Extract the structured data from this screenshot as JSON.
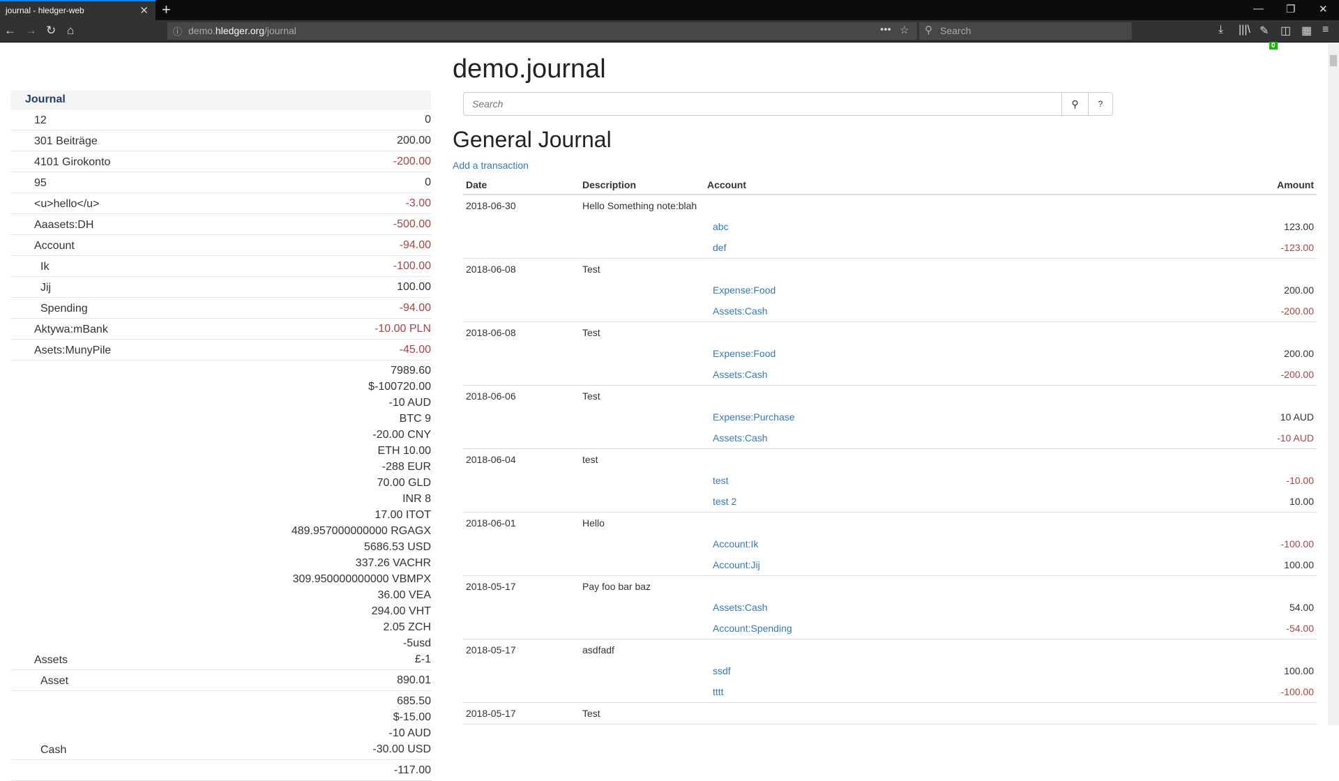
{
  "browser": {
    "tab_title": "journal - hledger-web",
    "url_prefix": "demo.",
    "url_domain": "hledger.org",
    "url_path": "/journal",
    "search_placeholder": "Search",
    "badge_count": "0"
  },
  "page": {
    "title": "demo.journal",
    "search_placeholder": "Search",
    "search_help": "?",
    "heading": "General Journal",
    "add_transaction": "Add a transaction"
  },
  "sidebar": {
    "header": "Journal",
    "rows": [
      {
        "name": "12",
        "depth": 1,
        "amounts": [
          {
            "v": "0",
            "neg": false
          }
        ]
      },
      {
        "name": "301 Beiträge",
        "depth": 1,
        "amounts": [
          {
            "v": "200.00",
            "neg": false
          }
        ]
      },
      {
        "name": "4101 Girokonto",
        "depth": 1,
        "amounts": [
          {
            "v": "-200.00",
            "neg": true
          }
        ]
      },
      {
        "name": "95",
        "depth": 1,
        "amounts": [
          {
            "v": "0",
            "neg": false
          }
        ]
      },
      {
        "name": "<u>hello</u>",
        "depth": 1,
        "amounts": [
          {
            "v": "-3.00",
            "neg": true
          }
        ]
      },
      {
        "name": "Aaasets:DH",
        "depth": 1,
        "amounts": [
          {
            "v": "-500.00",
            "neg": true
          }
        ]
      },
      {
        "name": "Account",
        "depth": 1,
        "amounts": [
          {
            "v": "-94.00",
            "neg": true
          }
        ]
      },
      {
        "name": "Ik",
        "depth": 2,
        "amounts": [
          {
            "v": "-100.00",
            "neg": true
          }
        ]
      },
      {
        "name": "Jij",
        "depth": 2,
        "amounts": [
          {
            "v": "100.00",
            "neg": false
          }
        ]
      },
      {
        "name": "Spending",
        "depth": 2,
        "amounts": [
          {
            "v": "-94.00",
            "neg": true
          }
        ]
      },
      {
        "name": "Aktywa:mBank",
        "depth": 1,
        "amounts": [
          {
            "v": "-10.00 PLN",
            "neg": true
          }
        ]
      },
      {
        "name": "Asets:MunyPile",
        "depth": 1,
        "amounts": [
          {
            "v": "-45.00",
            "neg": true
          }
        ]
      },
      {
        "name": "Assets",
        "depth": 1,
        "amounts": [
          {
            "v": "7989.60",
            "neg": false
          },
          {
            "v": "$-100720.00",
            "neg": false
          },
          {
            "v": "-10 AUD",
            "neg": false
          },
          {
            "v": "BTC 9",
            "neg": false
          },
          {
            "v": "-20.00 CNY",
            "neg": false
          },
          {
            "v": "ETH 10.00",
            "neg": false
          },
          {
            "v": "-288 EUR",
            "neg": false
          },
          {
            "v": "70.00 GLD",
            "neg": false
          },
          {
            "v": "INR 8",
            "neg": false
          },
          {
            "v": "17.00 ITOT",
            "neg": false
          },
          {
            "v": "489.957000000000 RGAGX",
            "neg": false
          },
          {
            "v": "5686.53 USD",
            "neg": false
          },
          {
            "v": "337.26 VACHR",
            "neg": false
          },
          {
            "v": "309.950000000000 VBMPX",
            "neg": false
          },
          {
            "v": "36.00 VEA",
            "neg": false
          },
          {
            "v": "294.00 VHT",
            "neg": false
          },
          {
            "v": "2.05 ZCH",
            "neg": false
          },
          {
            "v": "-5usd",
            "neg": false
          },
          {
            "v": "£-1",
            "neg": false
          }
        ]
      },
      {
        "name": "Asset",
        "depth": 2,
        "amounts": [
          {
            "v": "890.01",
            "neg": false
          }
        ]
      },
      {
        "name": "Cash",
        "depth": 2,
        "amounts": [
          {
            "v": "685.50",
            "neg": false
          },
          {
            "v": "$-15.00",
            "neg": false
          },
          {
            "v": "-10 AUD",
            "neg": false
          },
          {
            "v": "-30.00 USD",
            "neg": false
          }
        ]
      },
      {
        "name": "",
        "depth": 2,
        "amounts": [
          {
            "v": "-117.00",
            "neg": false
          }
        ]
      }
    ]
  },
  "journal": {
    "columns": [
      "Date",
      "Description",
      "Account",
      "Amount"
    ],
    "transactions": [
      {
        "date": "2018-06-30",
        "description": "Hello Something note:blah",
        "postings": [
          {
            "account": "abc",
            "amount": "123.00",
            "neg": false
          },
          {
            "account": "def",
            "amount": "-123.00",
            "neg": true
          }
        ]
      },
      {
        "date": "2018-06-08",
        "description": "Test",
        "postings": [
          {
            "account": "Expense:Food",
            "amount": "200.00",
            "neg": false
          },
          {
            "account": "Assets:Cash",
            "amount": "-200.00",
            "neg": true
          }
        ]
      },
      {
        "date": "2018-06-08",
        "description": "Test",
        "postings": [
          {
            "account": "Expense:Food",
            "amount": "200.00",
            "neg": false
          },
          {
            "account": "Assets:Cash",
            "amount": "-200.00",
            "neg": true
          }
        ]
      },
      {
        "date": "2018-06-06",
        "description": "Test",
        "postings": [
          {
            "account": "Expense:Purchase",
            "amount": "10 AUD",
            "neg": false
          },
          {
            "account": "Assets:Cash",
            "amount": "-10 AUD",
            "neg": true
          }
        ]
      },
      {
        "date": "2018-06-04",
        "description": "test",
        "postings": [
          {
            "account": "test",
            "amount": "-10.00",
            "neg": true
          },
          {
            "account": "test 2",
            "amount": "10.00",
            "neg": false
          }
        ]
      },
      {
        "date": "2018-06-01",
        "description": "Hello",
        "postings": [
          {
            "account": "Account:Ik",
            "amount": "-100.00",
            "neg": true
          },
          {
            "account": "Account:Jij",
            "amount": "100.00",
            "neg": false
          }
        ]
      },
      {
        "date": "2018-05-17",
        "description": "Pay foo bar baz",
        "postings": [
          {
            "account": "Assets:Cash",
            "amount": "54.00",
            "neg": false
          },
          {
            "account": "Account:Spending",
            "amount": "-54.00",
            "neg": true
          }
        ]
      },
      {
        "date": "2018-05-17",
        "description": "asdfadf",
        "postings": [
          {
            "account": "ssdf",
            "amount": "100.00",
            "neg": false
          },
          {
            "account": "tttt",
            "amount": "-100.00",
            "neg": true
          }
        ]
      },
      {
        "date": "2018-05-17",
        "description": "Test",
        "postings": []
      }
    ]
  },
  "colors": {
    "negative": "#a94442",
    "link": "#337ab7",
    "sidebar_header": "#1f3f6f"
  }
}
